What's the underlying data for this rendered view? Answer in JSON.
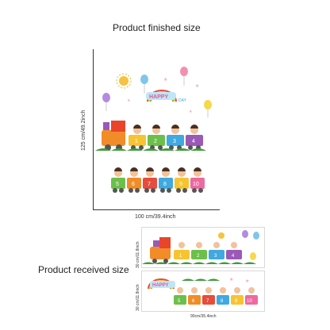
{
  "finished": {
    "title": "Product finished size",
    "height_label": "125 cm/49.2inch",
    "width_label": "100 cm/39.4inch",
    "sticker_text": "HAPPY",
    "sticker_text2": "DAY",
    "car_numbers_top": [
      "1",
      "2",
      "3",
      "4"
    ],
    "car_numbers_bottom": [
      "5",
      "6",
      "7",
      "8",
      "9",
      "10"
    ]
  },
  "received": {
    "title": "Product received size",
    "height_label_top": "30 cm/11.8inch",
    "height_label_bottom": "30 cm/11.8inch",
    "width_label": "90cm/35.4inch",
    "car_numbers_top": [
      "1",
      "2",
      "3",
      "4"
    ],
    "car_numbers_bottom": [
      "5",
      "6",
      "7",
      "8",
      "9",
      "10"
    ]
  },
  "colors": {
    "engine": "#e8452c",
    "car_yellow": "#f7c431",
    "car_green": "#6cc04a",
    "car_blue": "#3fa9e0",
    "car_purple": "#9b59b6",
    "car_orange": "#f28c28",
    "car_pink": "#ec6aa0",
    "car_red": "#e74c3c",
    "grass": "#3f9b3a",
    "sun": "#f5c242"
  }
}
